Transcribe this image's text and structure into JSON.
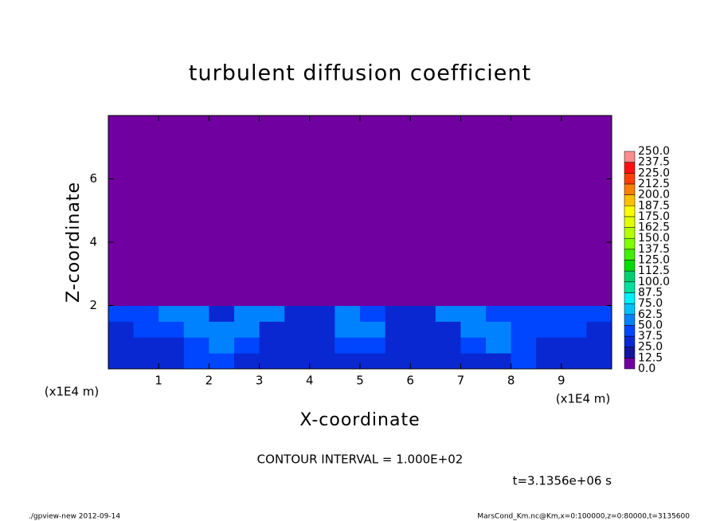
{
  "chart_data": {
    "type": "heatmap",
    "title": "turbulent diffusion coefficient",
    "x_label": "X-coordinate",
    "y_label": "Z-coordinate",
    "x_unit_label": "(x1E4 m)",
    "y_unit_label": "(x1E4 m)",
    "xlim": [
      0,
      10
    ],
    "ylim": [
      0,
      8
    ],
    "xticks": [
      1,
      2,
      3,
      4,
      5,
      6,
      7,
      8,
      9
    ],
    "yticks": [
      2,
      4,
      6
    ],
    "field": {
      "x_edges": [
        0,
        0.5,
        1,
        1.5,
        2,
        2.5,
        3,
        3.5,
        4,
        4.5,
        5,
        5.5,
        6,
        6.5,
        7,
        7.5,
        8,
        8.5,
        9,
        9.5,
        10
      ],
      "z_edges": [
        0,
        0.5,
        1,
        1.5,
        2,
        8
      ],
      "values": [
        [
          30,
          30,
          30,
          40,
          45,
          35,
          30,
          30,
          30,
          35,
          35,
          30,
          30,
          30,
          30,
          35,
          40,
          35,
          30,
          30
        ],
        [
          30,
          35,
          35,
          45,
          60,
          40,
          30,
          25,
          25,
          45,
          45,
          25,
          25,
          25,
          40,
          50,
          40,
          35,
          35,
          30
        ],
        [
          35,
          40,
          45,
          60,
          55,
          55,
          35,
          25,
          30,
          55,
          55,
          30,
          25,
          35,
          55,
          55,
          40,
          40,
          40,
          35
        ],
        [
          40,
          45,
          55,
          50,
          35,
          55,
          50,
          35,
          35,
          50,
          45,
          35,
          35,
          50,
          60,
          45,
          45,
          45,
          45,
          40
        ],
        [
          0,
          0,
          0,
          0,
          0,
          0,
          0,
          0,
          0,
          0,
          0,
          0,
          0,
          0,
          0,
          0,
          0,
          0,
          0,
          0
        ]
      ]
    },
    "colorbar": {
      "levels": [
        {
          "value": 0,
          "label": "0.0"
        },
        12.5,
        {
          "value": 25,
          "label": "25.0"
        },
        37.5,
        {
          "value": 50,
          "label": "50.0"
        },
        62.5,
        {
          "value": 75,
          "label": "75.0"
        },
        87.5,
        {
          "value": 100,
          "label": "100.0"
        },
        112.5,
        {
          "value": 125,
          "label": "125.0"
        },
        137.5,
        {
          "value": 150,
          "label": "150.0"
        },
        162.5,
        {
          "value": 175,
          "label": "175.0"
        },
        187.5,
        {
          "value": 200,
          "label": "200.0"
        },
        212.5,
        {
          "value": 225,
          "label": "225.0"
        },
        237.5,
        {
          "value": 250,
          "label": "250.0"
        }
      ],
      "colors": [
        "#7000a0",
        "#1414a0",
        "#0a28d2",
        "#0046ff",
        "#0082ff",
        "#00c0ff",
        "#00f0ff",
        "#00e0a0",
        "#00d070",
        "#00dc00",
        "#40f000",
        "#80ff00",
        "#b4ff00",
        "#e0ff00",
        "#ffff00",
        "#ffc000",
        "#ff8000",
        "#ff4000",
        "#ff1010",
        "#ff8c8c"
      ]
    },
    "contour_interval_note": "CONTOUR INTERVAL = 1.000E+02",
    "time_label": "t=3.1356e+06 s",
    "footer_left": "./gpview-new  2012-09-14",
    "footer_right": "MarsCond_Km.nc@Km,x=0:100000,z=0:80000,t=3135600"
  }
}
